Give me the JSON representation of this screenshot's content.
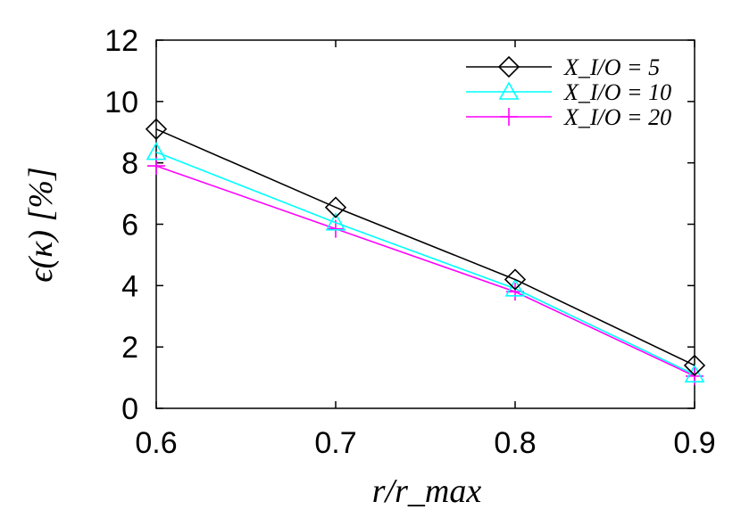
{
  "chart_data": {
    "type": "line",
    "xlabel": "r/r_max",
    "ylabel": "ϵ(κ) [%]",
    "xlim": [
      0.6,
      0.9
    ],
    "ylim": [
      0,
      12
    ],
    "xticks": [
      "0.6",
      "0.7",
      "0.8",
      "0.9"
    ],
    "yticks": [
      "0",
      "2",
      "4",
      "6",
      "8",
      "10",
      "12"
    ],
    "grid": false,
    "legend_position": "top-right",
    "x": [
      0.6,
      0.7,
      0.8,
      0.9
    ],
    "series": [
      {
        "name": "X_I/O = 5",
        "color": "#000000",
        "marker": "diamond",
        "values": [
          9.1,
          6.55,
          4.2,
          1.4
        ]
      },
      {
        "name": "X_I/O = 10",
        "color": "#00ffff",
        "marker": "triangle",
        "values": [
          8.35,
          6.05,
          3.9,
          1.1
        ]
      },
      {
        "name": "X_I/O = 20",
        "color": "#ff00ff",
        "marker": "plus",
        "values": [
          7.9,
          5.85,
          3.8,
          1.05
        ]
      }
    ]
  }
}
